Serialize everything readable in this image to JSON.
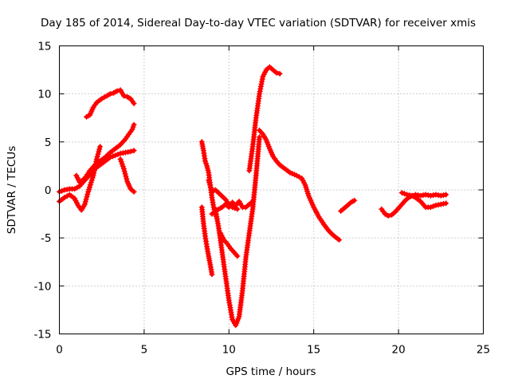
{
  "chart_data": {
    "type": "scatter",
    "title": "Day 185 of 2014, Sidereal Day-to-day VTEC variation (SDTVAR) for receiver xmis",
    "xlabel": "GPS time / hours",
    "ylabel": "SDTVAR / TECUs",
    "xlim": [
      0,
      25
    ],
    "ylim": [
      -15,
      15
    ],
    "xticks": [
      "0",
      "5",
      "10",
      "15",
      "20",
      "25"
    ],
    "yticks": [
      "15",
      "10",
      "5",
      "0",
      "-5",
      "-10",
      "-15"
    ],
    "xtick_values": [
      0,
      5,
      10,
      15,
      20,
      25
    ],
    "ytick_values": [
      15,
      10,
      5,
      0,
      -5,
      -10,
      -15
    ],
    "grid": true,
    "marker": "+",
    "color": "#ff0000",
    "series": [
      {
        "x": [
          0.0,
          0.3,
          0.6,
          0.9,
          1.1,
          1.3,
          1.5,
          1.7,
          2.0,
          2.2,
          2.4
        ],
        "y": [
          -1.2,
          -0.8,
          -0.5,
          -0.9,
          -1.6,
          -2.1,
          -1.5,
          -0.2,
          1.5,
          3.2,
          4.5
        ]
      },
      {
        "x": [
          0.0,
          0.3,
          0.6,
          0.9,
          1.2,
          1.5,
          1.8,
          2.1,
          2.4,
          2.7,
          3.0,
          3.3,
          3.6,
          3.9,
          4.2,
          4.4
        ],
        "y": [
          -0.2,
          0.0,
          0.1,
          0.1,
          0.4,
          1.0,
          1.6,
          2.2,
          2.6,
          3.0,
          3.4,
          3.6,
          3.8,
          3.9,
          4.0,
          4.1
        ]
      },
      {
        "x": [
          1.0,
          1.2,
          1.5,
          1.8,
          2.1,
          2.4,
          2.7,
          3.0,
          3.3,
          3.6,
          3.9,
          4.1,
          4.3,
          4.4
        ],
        "y": [
          1.5,
          0.8,
          1.2,
          2.0,
          2.6,
          3.0,
          3.4,
          3.9,
          4.3,
          4.7,
          5.3,
          5.8,
          6.3,
          6.8
        ]
      },
      {
        "x": [
          1.6,
          1.8,
          2.0,
          2.2,
          2.5,
          2.8,
          3.0,
          3.2,
          3.4,
          3.6,
          3.8,
          4.0,
          4.2,
          4.4
        ],
        "y": [
          7.6,
          7.8,
          8.6,
          9.1,
          9.5,
          9.8,
          10.0,
          10.1,
          10.3,
          10.4,
          9.8,
          9.7,
          9.5,
          9.0
        ]
      },
      {
        "x": [
          3.6,
          3.8,
          4.0,
          4.2,
          4.4
        ],
        "y": [
          3.2,
          2.2,
          0.9,
          0.1,
          -0.2
        ]
      },
      {
        "x": [
          8.4,
          8.5,
          8.6,
          8.7,
          8.8,
          8.9,
          9.0,
          9.1,
          9.2,
          9.3
        ],
        "y": [
          5.0,
          4.1,
          3.0,
          2.5,
          1.8,
          0.5,
          -0.8,
          -1.8,
          -2.5,
          -3.0
        ]
      },
      {
        "x": [
          8.4,
          8.5,
          8.6,
          8.7,
          8.8,
          8.9,
          9.0
        ],
        "y": [
          -1.8,
          -3.5,
          -4.8,
          -5.9,
          -6.9,
          -7.8,
          -8.8
        ]
      },
      {
        "x": [
          8.8,
          9.0,
          9.2,
          9.5,
          9.8,
          10.0,
          10.2,
          10.5
        ],
        "y": [
          1.0,
          -0.2,
          0.0,
          -0.5,
          -1.0,
          -1.5,
          -1.8,
          -2.0
        ]
      },
      {
        "x": [
          9.0,
          9.2,
          9.4,
          9.6,
          9.8,
          10.0,
          10.2,
          10.4,
          10.6,
          10.8,
          11.0,
          11.2,
          11.4
        ],
        "y": [
          -2.5,
          -2.2,
          -2.0,
          -1.8,
          -1.5,
          -1.8,
          -1.3,
          -1.6,
          -1.2,
          -1.8,
          -1.8,
          -1.5,
          -1.2
        ]
      },
      {
        "x": [
          9.2,
          9.4,
          9.6,
          9.8,
          10.0,
          10.2,
          10.4,
          10.6,
          10.8,
          11.0,
          11.2,
          11.4,
          11.6,
          11.7,
          11.8
        ],
        "y": [
          -2.0,
          -4.0,
          -6.5,
          -9.0,
          -11.5,
          -13.5,
          -14.1,
          -13.2,
          -10.5,
          -7.0,
          -4.5,
          -2.0,
          1.5,
          3.5,
          5.5
        ]
      },
      {
        "x": [
          9.5,
          9.7,
          9.9,
          10.1,
          10.3,
          10.5
        ],
        "y": [
          -4.5,
          -5.2,
          -5.6,
          -6.1,
          -6.5,
          -6.9
        ]
      },
      {
        "x": [
          11.2,
          11.4,
          11.6,
          11.8,
          12.0,
          12.2,
          12.4,
          12.6,
          12.8,
          13.0
        ],
        "y": [
          2.0,
          4.5,
          7.5,
          10.0,
          11.8,
          12.5,
          12.8,
          12.5,
          12.2,
          12.1
        ]
      },
      {
        "x": [
          11.8,
          12.0,
          12.2,
          12.4,
          12.6,
          12.8,
          13.0,
          13.3,
          13.6,
          14.0,
          14.3,
          14.5,
          14.7,
          15.0,
          15.3,
          15.6,
          15.9,
          16.2,
          16.5
        ],
        "y": [
          6.2,
          5.8,
          5.2,
          4.3,
          3.5,
          3.0,
          2.6,
          2.2,
          1.8,
          1.5,
          1.2,
          0.5,
          -0.6,
          -1.8,
          -2.8,
          -3.6,
          -4.3,
          -4.8,
          -5.2
        ]
      },
      {
        "x": [
          16.6,
          16.8,
          17.0,
          17.2,
          17.4
        ],
        "y": [
          -2.2,
          -1.9,
          -1.6,
          -1.3,
          -1.1
        ]
      },
      {
        "x": [
          19.0,
          19.2,
          19.4,
          19.6,
          19.8,
          20.0,
          20.2,
          20.4,
          20.6,
          20.8,
          21.0,
          21.3,
          21.6,
          21.9,
          22.2,
          22.5,
          22.8
        ],
        "y": [
          -2.0,
          -2.5,
          -2.7,
          -2.6,
          -2.3,
          -1.9,
          -1.5,
          -1.1,
          -0.8,
          -0.6,
          -0.5,
          -0.6,
          -0.5,
          -0.6,
          -0.5,
          -0.6,
          -0.5
        ]
      },
      {
        "x": [
          20.2,
          20.5,
          20.8,
          21.0,
          21.3,
          21.6,
          21.9,
          22.2,
          22.5,
          22.8
        ],
        "y": [
          -0.3,
          -0.5,
          -0.6,
          -0.8,
          -1.2,
          -1.8,
          -1.8,
          -1.6,
          -1.5,
          -1.4
        ]
      }
    ]
  }
}
